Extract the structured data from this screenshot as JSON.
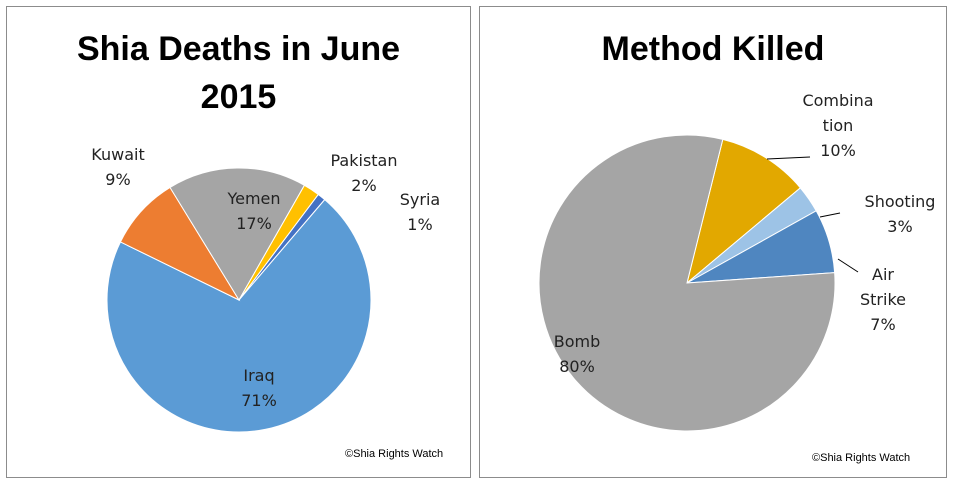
{
  "chart_data": [
    {
      "type": "pie",
      "title_lines": [
        "Shia Deaths in June",
        "2015"
      ],
      "credit": "©Shia Rights Watch",
      "slices": [
        {
          "label": "Iraq",
          "value": 71,
          "value_label": "71%",
          "color": "#5b9bd5"
        },
        {
          "label": "Kuwait",
          "value": 9,
          "value_label": "9%",
          "color": "#ed7d31"
        },
        {
          "label": "Yemen",
          "value": 17,
          "value_label": "17%",
          "color": "#a5a5a5"
        },
        {
          "label": "Pakistan",
          "value": 2,
          "value_label": "2%",
          "color": "#ffc000"
        },
        {
          "label": "Syria",
          "value": 1,
          "value_label": "1%",
          "color": "#4472c4"
        }
      ]
    },
    {
      "type": "pie",
      "title_lines": [
        "Method Killed"
      ],
      "credit": "©Shia Rights Watch",
      "slices": [
        {
          "label": "Bomb",
          "value": 80,
          "value_label": "80%",
          "color": "#a5a5a5"
        },
        {
          "label": "Combination",
          "label_lines": [
            "Combina",
            "tion"
          ],
          "value": 10,
          "value_label": "10%",
          "color": "#e2a800"
        },
        {
          "label": "Shooting",
          "value": 3,
          "value_label": "3%",
          "color": "#9dc3e6"
        },
        {
          "label": "Air Strike",
          "label_lines": [
            "Air",
            "Strike"
          ],
          "value": 7,
          "value_label": "7%",
          "color": "#4f86c0"
        }
      ]
    }
  ]
}
